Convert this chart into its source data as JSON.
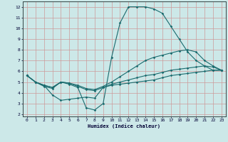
{
  "xlabel": "Humidex (Indice chaleur)",
  "xlim": [
    -0.5,
    23.5
  ],
  "ylim": [
    1.8,
    12.5
  ],
  "xticks": [
    0,
    1,
    2,
    3,
    4,
    5,
    6,
    7,
    8,
    9,
    10,
    11,
    12,
    13,
    14,
    15,
    16,
    17,
    18,
    19,
    20,
    21,
    22,
    23
  ],
  "yticks": [
    2,
    3,
    4,
    5,
    6,
    7,
    8,
    9,
    10,
    11,
    12
  ],
  "bg_color": "#cce8e8",
  "grid_color_major": "#aaaacc",
  "grid_color_minor": "#aaaacc",
  "line_color": "#1a6b6e",
  "lines": [
    {
      "x": [
        0,
        1,
        2,
        3,
        4,
        5,
        6,
        7,
        8,
        9,
        10,
        11,
        12,
        13,
        14,
        15,
        16,
        17,
        18,
        19,
        20,
        21,
        22,
        23
      ],
      "y": [
        5.6,
        5.0,
        4.6,
        4.4,
        5.0,
        4.8,
        4.5,
        2.6,
        2.4,
        3.0,
        7.3,
        10.5,
        12.0,
        12.0,
        12.0,
        11.8,
        11.4,
        10.2,
        9.0,
        7.8,
        7.0,
        6.5,
        6.1,
        6.1
      ]
    },
    {
      "x": [
        0,
        1,
        2,
        3,
        4,
        5,
        6,
        7,
        8,
        9,
        10,
        11,
        12,
        13,
        14,
        15,
        16,
        17,
        18,
        19,
        20,
        21,
        22,
        23
      ],
      "y": [
        5.6,
        5.0,
        4.7,
        4.5,
        5.0,
        4.9,
        4.6,
        4.3,
        4.2,
        4.5,
        4.8,
        5.0,
        5.2,
        5.4,
        5.6,
        5.7,
        5.9,
        6.1,
        6.2,
        6.3,
        6.4,
        6.5,
        6.4,
        6.1
      ]
    },
    {
      "x": [
        0,
        1,
        2,
        3,
        4,
        5,
        6,
        7,
        8,
        9,
        10,
        11,
        12,
        13,
        14,
        15,
        16,
        17,
        18,
        19,
        20,
        21,
        22,
        23
      ],
      "y": [
        5.6,
        5.0,
        4.7,
        4.5,
        5.0,
        4.9,
        4.7,
        4.4,
        4.3,
        4.6,
        5.0,
        5.5,
        6.0,
        6.5,
        7.0,
        7.3,
        7.5,
        7.7,
        7.9,
        8.0,
        7.8,
        7.0,
        6.5,
        6.1
      ]
    },
    {
      "x": [
        0,
        1,
        2,
        3,
        4,
        5,
        6,
        7,
        8,
        9,
        10,
        11,
        12,
        13,
        14,
        15,
        16,
        17,
        18,
        19,
        20,
        21,
        22,
        23
      ],
      "y": [
        5.6,
        5.0,
        4.7,
        3.8,
        3.3,
        3.4,
        3.5,
        3.6,
        3.5,
        4.5,
        4.7,
        4.8,
        4.9,
        5.0,
        5.1,
        5.2,
        5.4,
        5.6,
        5.7,
        5.8,
        5.9,
        6.0,
        6.1,
        6.1
      ]
    }
  ]
}
